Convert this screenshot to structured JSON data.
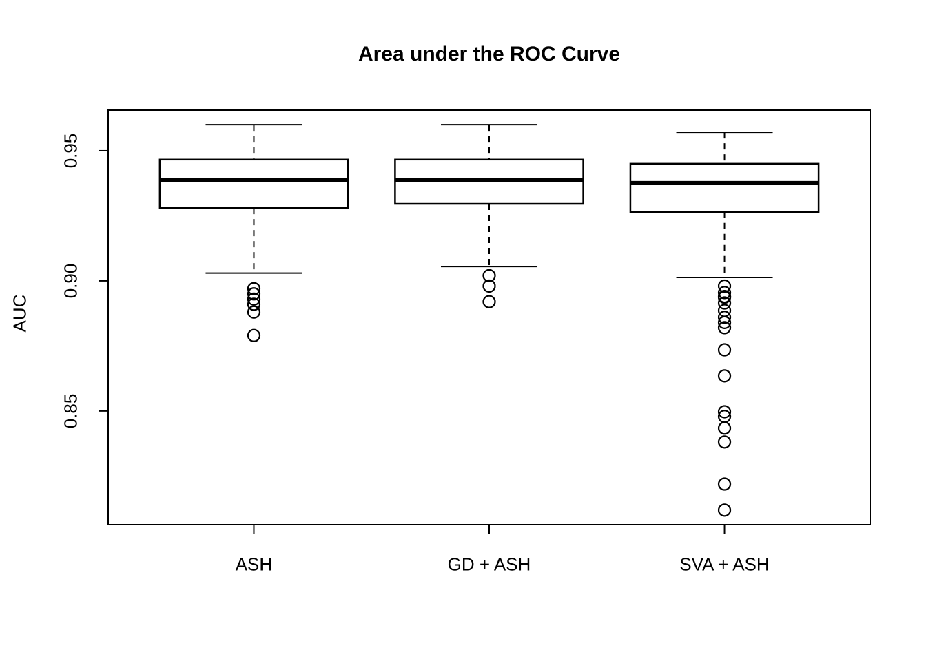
{
  "chart_data": {
    "type": "boxplot",
    "title": "Area under the ROC Curve",
    "xlabel": "",
    "ylabel": "AUC",
    "ylim": [
      0.806,
      0.966
    ],
    "yticks": [
      0.85,
      0.9,
      0.95
    ],
    "ytick_labels": [
      "0.85",
      "0.90",
      "0.95"
    ],
    "grid": false,
    "legend": "none",
    "colors": {
      "stroke": "#000000",
      "background": "#ffffff"
    },
    "categories": [
      "ASH",
      "GD + ASH",
      "SVA + ASH"
    ],
    "series": [
      {
        "name": "ASH",
        "lower_whisker": 0.903,
        "q1": 0.928,
        "median": 0.9386,
        "q3": 0.9466,
        "upper_whisker": 0.96,
        "outliers": [
          0.897,
          0.895,
          0.893,
          0.891,
          0.888,
          0.879
        ]
      },
      {
        "name": "GD + ASH",
        "lower_whisker": 0.9055,
        "q1": 0.9296,
        "median": 0.9386,
        "q3": 0.9466,
        "upper_whisker": 0.96,
        "outliers": [
          0.902,
          0.898,
          0.892
        ]
      },
      {
        "name": "SVA + ASH",
        "lower_whisker": 0.9013,
        "q1": 0.9265,
        "median": 0.9376,
        "q3": 0.945,
        "upper_whisker": 0.9571,
        "outliers": [
          0.898,
          0.8955,
          0.894,
          0.8937,
          0.8915,
          0.8886,
          0.886,
          0.884,
          0.882,
          0.8735,
          0.8635,
          0.8497,
          0.8479,
          0.8434,
          0.8381,
          0.8219,
          0.8119
        ]
      }
    ]
  }
}
